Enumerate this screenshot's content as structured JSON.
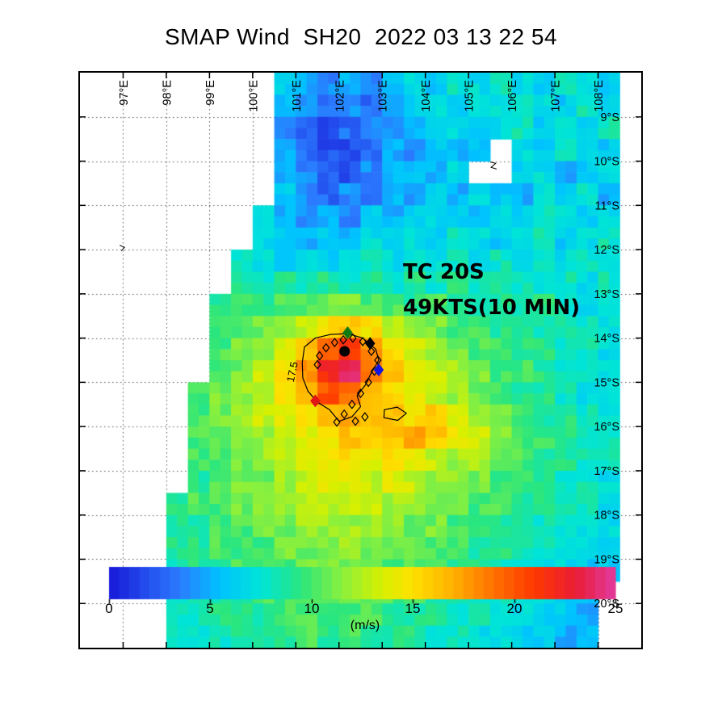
{
  "title": "SMAP Wind  SH20  2022 03 13 22 54",
  "annotation": {
    "line1": "TC 20S",
    "line2": "49KTS(10 MIN)"
  },
  "colorbar": {
    "ticks": [
      "0",
      "5",
      "10",
      "15",
      "20",
      "25"
    ],
    "unit_label": "(m/s)",
    "min": 0,
    "max": 25
  },
  "axes": {
    "lon_range": [
      96,
      109
    ],
    "lat_range": [
      8,
      21
    ],
    "lon_labels": [
      {
        "value": 97,
        "label": "97°E"
      },
      {
        "value": 98,
        "label": "98°E"
      },
      {
        "value": 99,
        "label": "99°E"
      },
      {
        "value": 100,
        "label": "100°E"
      },
      {
        "value": 101,
        "label": "101°E"
      },
      {
        "value": 102,
        "label": "102°E"
      },
      {
        "value": 103,
        "label": "103°E"
      },
      {
        "value": 104,
        "label": "104°E"
      },
      {
        "value": 105,
        "label": "105°E"
      },
      {
        "value": 106,
        "label": "106°E"
      },
      {
        "value": 107,
        "label": "107°E"
      },
      {
        "value": 108,
        "label": "108°E"
      }
    ],
    "lat_labels": [
      {
        "value": 9,
        "label": "9°S"
      },
      {
        "value": 10,
        "label": "10°S"
      },
      {
        "value": 11,
        "label": "11°S"
      },
      {
        "value": 12,
        "label": "12°S"
      },
      {
        "value": 13,
        "label": "13°S"
      },
      {
        "value": 14,
        "label": "14°S"
      },
      {
        "value": 15,
        "label": "15°S"
      },
      {
        "value": 16,
        "label": "16°S"
      },
      {
        "value": 17,
        "label": "17°S"
      },
      {
        "value": 18,
        "label": "18°S"
      },
      {
        "value": 19,
        "label": "19°S"
      },
      {
        "value": 20,
        "label": "20°S"
      }
    ]
  },
  "chart_data": {
    "type": "heatmap",
    "variable": "SMAP 10-min wind speed",
    "units": "m/s",
    "scale_max": 25,
    "lon_start": 96,
    "lon_step": 0.5,
    "lat_start": 8,
    "lat_step": 0.5,
    "grid": [
      [
        null,
        null,
        null,
        null,
        null,
        null,
        null,
        null,
        null,
        6,
        5,
        4,
        5,
        4,
        6,
        7,
        6,
        8,
        7,
        8,
        7,
        6,
        8,
        7,
        6,
        null
      ],
      [
        null,
        null,
        null,
        null,
        null,
        null,
        null,
        null,
        null,
        5,
        4,
        3,
        4,
        3,
        5,
        6,
        7,
        6,
        8,
        7,
        8,
        7,
        6,
        8,
        7,
        null
      ],
      [
        null,
        null,
        null,
        null,
        null,
        null,
        null,
        null,
        null,
        4,
        3,
        2,
        3,
        4,
        4,
        5,
        6,
        7,
        6,
        7,
        8,
        6,
        7,
        6,
        8,
        null
      ],
      [
        null,
        null,
        null,
        null,
        null,
        null,
        null,
        null,
        null,
        5,
        3,
        2,
        2,
        3,
        5,
        4,
        6,
        5,
        6,
        null,
        7,
        6,
        8,
        7,
        6,
        null
      ],
      [
        null,
        null,
        null,
        null,
        null,
        null,
        null,
        null,
        null,
        5,
        4,
        3,
        2,
        4,
        5,
        6,
        5,
        7,
        null,
        null,
        6,
        7,
        5,
        6,
        7,
        null
      ],
      [
        null,
        null,
        null,
        null,
        null,
        null,
        null,
        null,
        null,
        6,
        4,
        3,
        4,
        3,
        5,
        4,
        6,
        5,
        7,
        6,
        5,
        7,
        6,
        8,
        5,
        null
      ],
      [
        null,
        null,
        null,
        null,
        null,
        null,
        null,
        null,
        7,
        5,
        4,
        5,
        4,
        6,
        5,
        6,
        7,
        6,
        5,
        7,
        6,
        8,
        7,
        6,
        7,
        null
      ],
      [
        null,
        null,
        null,
        null,
        null,
        null,
        null,
        null,
        7,
        6,
        5,
        6,
        5,
        7,
        6,
        7,
        6,
        8,
        7,
        6,
        7,
        8,
        6,
        7,
        8,
        null
      ],
      [
        null,
        null,
        null,
        null,
        null,
        null,
        null,
        8,
        7,
        6,
        7,
        6,
        7,
        8,
        7,
        8,
        7,
        8,
        7,
        8,
        7,
        8,
        7,
        8,
        7,
        null
      ],
      [
        null,
        null,
        null,
        null,
        null,
        null,
        null,
        9,
        8,
        9,
        8,
        9,
        8,
        9,
        8,
        9,
        8,
        9,
        8,
        9,
        8,
        7,
        8,
        7,
        8,
        null
      ],
      [
        null,
        null,
        null,
        null,
        null,
        null,
        9,
        10,
        9,
        10,
        10,
        11,
        11,
        10,
        10,
        9,
        10,
        9,
        8,
        9,
        8,
        9,
        8,
        7,
        8,
        null
      ],
      [
        null,
        null,
        null,
        null,
        null,
        null,
        10,
        10,
        11,
        12,
        13,
        15,
        16,
        15,
        13,
        12,
        11,
        10,
        10,
        9,
        9,
        8,
        9,
        8,
        7,
        null
      ],
      [
        null,
        null,
        null,
        null,
        null,
        null,
        10,
        11,
        12,
        14,
        16,
        19,
        21,
        18,
        15,
        13,
        12,
        11,
        10,
        10,
        9,
        9,
        8,
        8,
        7,
        null
      ],
      [
        null,
        null,
        null,
        null,
        null,
        null,
        10,
        11,
        13,
        15,
        18,
        22,
        24,
        19,
        16,
        14,
        13,
        12,
        11,
        10,
        10,
        9,
        8,
        8,
        7,
        null
      ],
      [
        null,
        null,
        null,
        null,
        null,
        10,
        11,
        12,
        13,
        15,
        17,
        20,
        19,
        17,
        15,
        14,
        13,
        12,
        11,
        10,
        9,
        9,
        8,
        7,
        7,
        null
      ],
      [
        null,
        null,
        null,
        null,
        null,
        10,
        11,
        12,
        13,
        14,
        15,
        17,
        17,
        16,
        16,
        15,
        16,
        14,
        12,
        11,
        10,
        9,
        9,
        8,
        7,
        null
      ],
      [
        null,
        null,
        null,
        null,
        null,
        10,
        11,
        11,
        12,
        13,
        14,
        15,
        16,
        15,
        16,
        17,
        16,
        14,
        13,
        11,
        10,
        10,
        9,
        8,
        8,
        null
      ],
      [
        null,
        null,
        null,
        null,
        null,
        10,
        10,
        11,
        12,
        13,
        14,
        14,
        15,
        14,
        15,
        14,
        13,
        12,
        12,
        11,
        10,
        9,
        9,
        8,
        8,
        null
      ],
      [
        null,
        null,
        null,
        null,
        null,
        9,
        10,
        11,
        11,
        12,
        13,
        14,
        14,
        13,
        14,
        13,
        12,
        12,
        11,
        10,
        10,
        9,
        8,
        8,
        7,
        null
      ],
      [
        null,
        null,
        null,
        null,
        9,
        10,
        10,
        11,
        11,
        12,
        13,
        13,
        13,
        13,
        12,
        12,
        11,
        11,
        10,
        10,
        9,
        9,
        8,
        8,
        7,
        null
      ],
      [
        null,
        null,
        null,
        null,
        9,
        9,
        10,
        10,
        11,
        11,
        12,
        12,
        12,
        12,
        12,
        11,
        11,
        10,
        10,
        9,
        9,
        8,
        8,
        7,
        7,
        null
      ],
      [
        null,
        null,
        null,
        null,
        9,
        9,
        10,
        10,
        10,
        11,
        11,
        11,
        12,
        11,
        11,
        11,
        10,
        10,
        9,
        9,
        8,
        8,
        7,
        7,
        6,
        null
      ],
      [
        null,
        null,
        null,
        null,
        8,
        9,
        9,
        10,
        10,
        10,
        11,
        11,
        11,
        11,
        10,
        10,
        10,
        9,
        9,
        8,
        8,
        7,
        7,
        6,
        6,
        null
      ],
      [
        null,
        null,
        null,
        null,
        8,
        9,
        9,
        9,
        10,
        10,
        10,
        10,
        11,
        10,
        10,
        10,
        9,
        9,
        8,
        8,
        7,
        7,
        6,
        6,
        null,
        null
      ],
      [
        null,
        null,
        null,
        null,
        8,
        8,
        9,
        9,
        9,
        10,
        10,
        10,
        10,
        10,
        9,
        9,
        9,
        8,
        8,
        7,
        7,
        6,
        6,
        5,
        null,
        null
      ],
      [
        null,
        null,
        null,
        null,
        8,
        8,
        8,
        9,
        9,
        9,
        10,
        9,
        10,
        9,
        9,
        9,
        8,
        8,
        7,
        7,
        6,
        6,
        5,
        5,
        null,
        null
      ]
    ],
    "colormap_stops": [
      [
        0.0,
        "#1818d8"
      ],
      [
        0.14,
        "#2b7bff"
      ],
      [
        0.22,
        "#00c3ff"
      ],
      [
        0.3,
        "#00e4d8"
      ],
      [
        0.38,
        "#2ae67e"
      ],
      [
        0.46,
        "#8af03c"
      ],
      [
        0.54,
        "#d8f000"
      ],
      [
        0.6,
        "#ffe000"
      ],
      [
        0.68,
        "#ffb000"
      ],
      [
        0.76,
        "#ff7000"
      ],
      [
        0.84,
        "#ff3800"
      ],
      [
        0.92,
        "#ea1c34"
      ],
      [
        1.0,
        "#e23aa0"
      ]
    ],
    "contour": {
      "level": 17.5,
      "label": "17.5",
      "label_pos": [
        101.0,
        14.78
      ],
      "label_rotation_deg": -78,
      "rings": [
        [
          [
            101.15,
            14.55
          ],
          [
            101.2,
            14.2
          ],
          [
            101.45,
            14.0
          ],
          [
            101.8,
            13.92
          ],
          [
            102.2,
            13.9
          ],
          [
            102.55,
            14.0
          ],
          [
            102.85,
            14.25
          ],
          [
            102.92,
            14.5
          ],
          [
            102.75,
            14.78
          ],
          [
            102.62,
            15.05
          ],
          [
            102.42,
            15.3
          ],
          [
            102.5,
            15.55
          ],
          [
            102.3,
            15.78
          ],
          [
            102.0,
            15.88
          ],
          [
            101.78,
            15.62
          ],
          [
            101.5,
            15.45
          ],
          [
            101.28,
            15.2
          ],
          [
            101.16,
            14.9
          ]
        ],
        [
          [
            103.05,
            15.62
          ],
          [
            103.35,
            15.56
          ],
          [
            103.56,
            15.7
          ],
          [
            103.36,
            15.86
          ],
          [
            103.04,
            15.8
          ]
        ]
      ],
      "artifact_marks": [
        [
          [
            96.92,
            11.9
          ],
          [
            97.03,
            11.95
          ],
          [
            96.96,
            12.03
          ]
        ],
        [
          [
            105.5,
            10.02
          ],
          [
            105.63,
            10.05
          ],
          [
            105.52,
            10.14
          ],
          [
            105.65,
            10.18
          ]
        ]
      ]
    },
    "markers": [
      {
        "shape": "circle",
        "color": "#000000",
        "lon": 102.13,
        "lat": 14.3,
        "name": "storm-center-marker"
      },
      {
        "shape": "diamond",
        "color": "#000000",
        "lon": 102.72,
        "lat": 14.12,
        "name": "track-marker-black"
      },
      {
        "shape": "diamond",
        "color": "#117a11",
        "lon": 102.2,
        "lat": 13.88,
        "name": "track-marker-green"
      },
      {
        "shape": "diamond",
        "color": "#1515e0",
        "lon": 102.92,
        "lat": 14.72,
        "name": "track-marker-blue"
      },
      {
        "shape": "diamond",
        "color": "#e01515",
        "lon": 101.45,
        "lat": 15.42,
        "name": "track-marker-red"
      }
    ],
    "track_points": [
      [
        101.5,
        14.6
      ],
      [
        101.55,
        14.4
      ],
      [
        101.7,
        14.22
      ],
      [
        101.9,
        14.1
      ],
      [
        102.1,
        14.04
      ],
      [
        102.32,
        14.0
      ],
      [
        102.55,
        14.08
      ],
      [
        102.75,
        14.3
      ],
      [
        102.9,
        14.5
      ],
      [
        102.82,
        14.75
      ],
      [
        102.68,
        15.0
      ],
      [
        102.5,
        15.25
      ],
      [
        102.3,
        15.5
      ],
      [
        102.12,
        15.72
      ],
      [
        101.95,
        15.9
      ],
      [
        102.38,
        15.88
      ],
      [
        102.6,
        15.78
      ]
    ]
  }
}
